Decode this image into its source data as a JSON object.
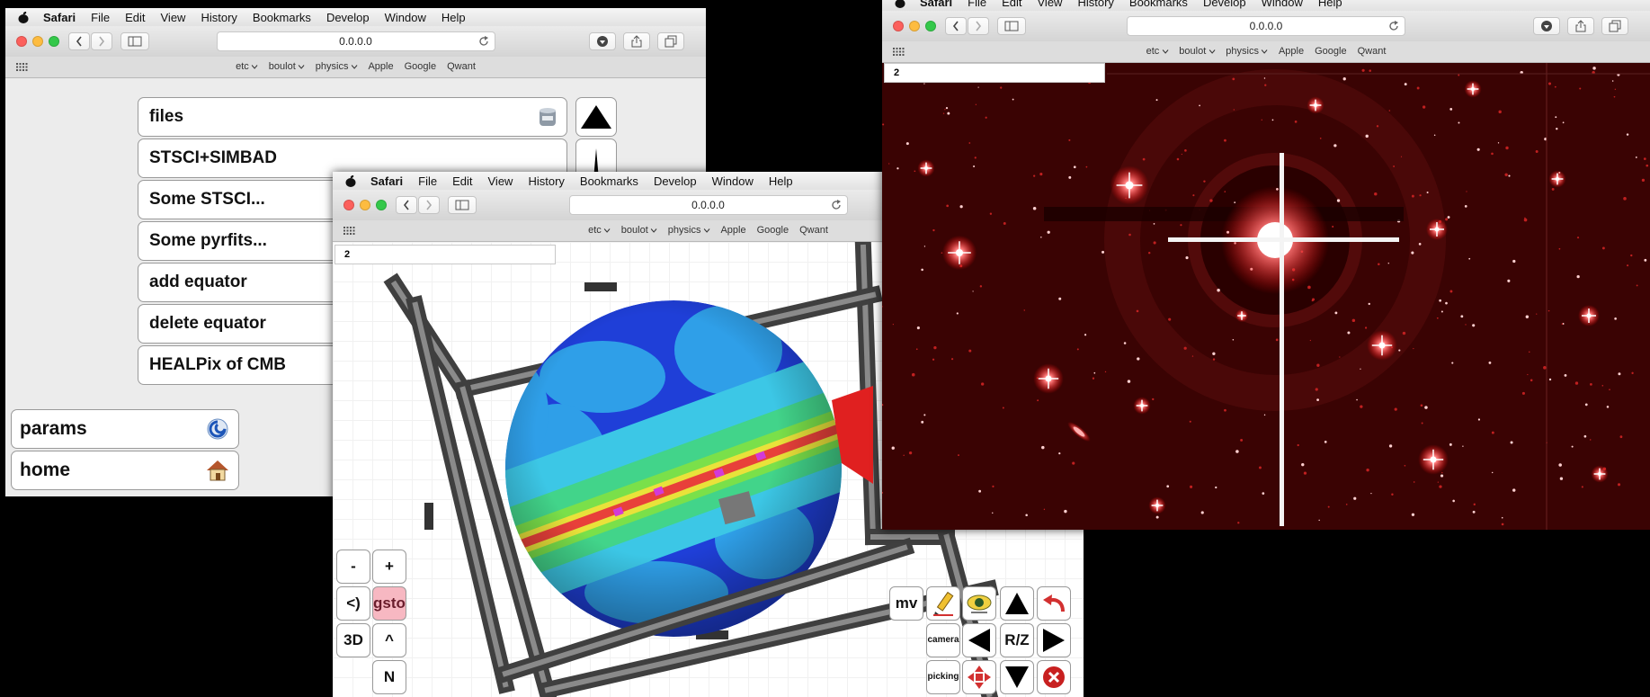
{
  "menu": [
    "Safari",
    "File",
    "Edit",
    "View",
    "History",
    "Bookmarks",
    "Develop",
    "Window",
    "Help"
  ],
  "address": "0.0.0.0",
  "bookmarks": [
    "etc",
    "boulot",
    "physics",
    "Apple",
    "Google",
    "Qwant"
  ],
  "launcher": {
    "items": [
      "files",
      "STSCI+SIMBAD",
      "Some STSCI...",
      "Some pyrfits...",
      "add equator",
      "delete equator",
      "HEALPix of CMB"
    ],
    "side": [
      "params",
      "home"
    ]
  },
  "viewer3d": {
    "field": "2",
    "left_controls": [
      "-",
      "+",
      "<)",
      "gsto",
      "3D",
      "^",
      "N"
    ],
    "right_controls": [
      "mv",
      "camera",
      "R/Z",
      "picking"
    ]
  },
  "sky": {
    "field": "2"
  }
}
